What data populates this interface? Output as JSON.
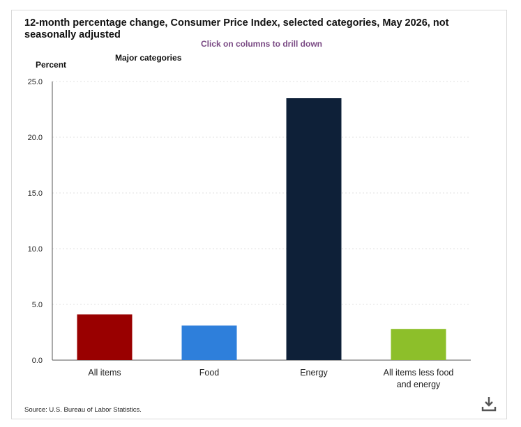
{
  "chart": {
    "title": "12-month percentage change, Consumer Price Index, selected categories, May 2026, not seasonally adjusted",
    "subtitle": "Click on columns to drill down",
    "ylabel": "Percent",
    "legend_title": "Major categories",
    "source": "Source: U.S. Bureau of Labor Statistics."
  },
  "icons": {
    "download": "download-icon"
  },
  "chart_data": {
    "type": "bar",
    "title": "12-month percentage change, Consumer Price Index, selected categories, May 2026, not seasonally adjusted",
    "subtitle": "Click on columns to drill down",
    "ylabel": "Percent",
    "xlabel": "",
    "legend_title": "Major categories",
    "categories": [
      "All items",
      "Food",
      "Energy",
      "All items less food and energy"
    ],
    "values": [
      4.1,
      3.1,
      23.5,
      2.8
    ],
    "colors": [
      "#990000",
      "#2e7fdb",
      "#0e2038",
      "#8dbf2a"
    ],
    "ylim": [
      0,
      25
    ],
    "yticks": [
      "0.0",
      "5.0",
      "10.0",
      "15.0",
      "20.0",
      "25.0"
    ],
    "grid": true
  }
}
